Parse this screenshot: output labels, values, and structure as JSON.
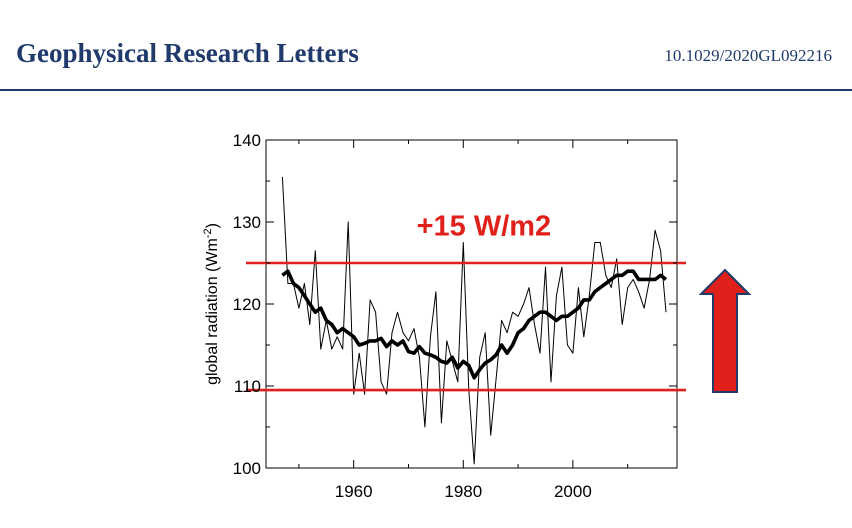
{
  "header": {
    "journal": "Geophysical Research Letters",
    "doi": "10.1029/2020GL092216"
  },
  "chart_data": {
    "type": "line",
    "title": "",
    "xlabel": "",
    "ylabel": "global radiation (Wm",
    "ylabel_superscript": "-2",
    "ylabel_close": ")",
    "xlim": [
      1944,
      2019
    ],
    "ylim": [
      100,
      140
    ],
    "xticks": [
      1960,
      1980,
      2000
    ],
    "yticks": [
      100,
      110,
      120,
      130,
      140
    ],
    "grid": false,
    "colors": {
      "annual": "#000000",
      "smoothed": "#000000",
      "reference": "#e0201b",
      "arrow": "#e0201b"
    },
    "series": [
      {
        "style": "thin",
        "x": [
          1947,
          1948,
          1949,
          1950,
          1951,
          1952,
          1953,
          1954,
          1955,
          1956,
          1957,
          1958,
          1959,
          1960,
          1961,
          1962,
          1963,
          1964,
          1965,
          1966,
          1967,
          1968,
          1969,
          1970,
          1971,
          1972,
          1973,
          1974,
          1975,
          1976,
          1977,
          1978,
          1979,
          1980,
          1981,
          1982,
          1983,
          1984,
          1985,
          1986,
          1987,
          1988,
          1989,
          1990,
          1991,
          1992,
          1993,
          1994,
          1995,
          1996,
          1997,
          1998,
          1999,
          2000,
          2001,
          2002,
          2003,
          2004,
          2005,
          2006,
          2007,
          2008,
          2009,
          2010,
          2011,
          2012,
          2013,
          2014,
          2015,
          2016,
          2017
        ],
        "y": [
          135.5,
          122.5,
          122.5,
          119.5,
          122.5,
          117.5,
          126.5,
          114.5,
          118,
          114.5,
          116,
          114.5,
          130,
          109,
          114,
          109,
          120.5,
          119,
          110.5,
          109,
          116.5,
          119,
          116.5,
          115.5,
          117,
          113.5,
          105,
          116,
          121.5,
          105.5,
          115.5,
          113,
          110.5,
          127.5,
          109.5,
          100.5,
          113.5,
          116.5,
          104,
          111,
          118,
          116.5,
          119,
          118.5,
          120,
          122,
          117.5,
          114,
          124.5,
          110.5,
          121,
          124.5,
          115,
          114,
          122,
          116,
          121,
          127.5,
          127.5,
          123.5,
          122,
          125.5,
          117.5,
          122,
          123,
          121.5,
          119.5,
          123,
          129,
          126.5,
          119
        ]
      },
      {
        "style": "thick",
        "x": [
          1947,
          1948,
          1949,
          1950,
          1951,
          1952,
          1953,
          1954,
          1955,
          1956,
          1957,
          1958,
          1959,
          1960,
          1961,
          1962,
          1963,
          1964,
          1965,
          1966,
          1967,
          1968,
          1969,
          1970,
          1971,
          1972,
          1973,
          1974,
          1975,
          1976,
          1977,
          1978,
          1979,
          1980,
          1981,
          1982,
          1983,
          1984,
          1985,
          1986,
          1987,
          1988,
          1989,
          1990,
          1991,
          1992,
          1993,
          1994,
          1995,
          1996,
          1997,
          1998,
          1999,
          2000,
          2001,
          2002,
          2003,
          2004,
          2005,
          2006,
          2007,
          2008,
          2009,
          2010,
          2011,
          2012,
          2013,
          2014,
          2015,
          2016,
          2017
        ],
        "y": [
          123.5,
          124,
          122.5,
          122,
          121,
          120,
          119,
          119.5,
          118,
          117.5,
          116.5,
          117,
          116.5,
          116,
          115,
          115.2,
          115.5,
          115.5,
          115.8,
          114.8,
          115.5,
          115,
          115.5,
          114.2,
          114,
          114.8,
          114,
          113.8,
          113.5,
          113,
          112.8,
          113.5,
          112.2,
          113,
          112.5,
          111,
          112,
          112.8,
          113.2,
          113.8,
          115,
          114,
          115,
          116.5,
          117,
          118,
          118.5,
          119,
          119,
          118.5,
          118,
          118.5,
          118.5,
          119,
          119.5,
          120.5,
          120.5,
          121.5,
          122,
          122.5,
          123,
          123.5,
          123.5,
          124,
          124,
          123,
          123,
          123,
          123,
          123.5,
          123
        ]
      }
    ],
    "reference_lines": [
      125,
      109.5
    ],
    "annotations": [
      {
        "text": "+15 W/m2",
        "x": 1975,
        "y": 129.8
      }
    ],
    "arrow": {
      "direction": "up"
    }
  }
}
